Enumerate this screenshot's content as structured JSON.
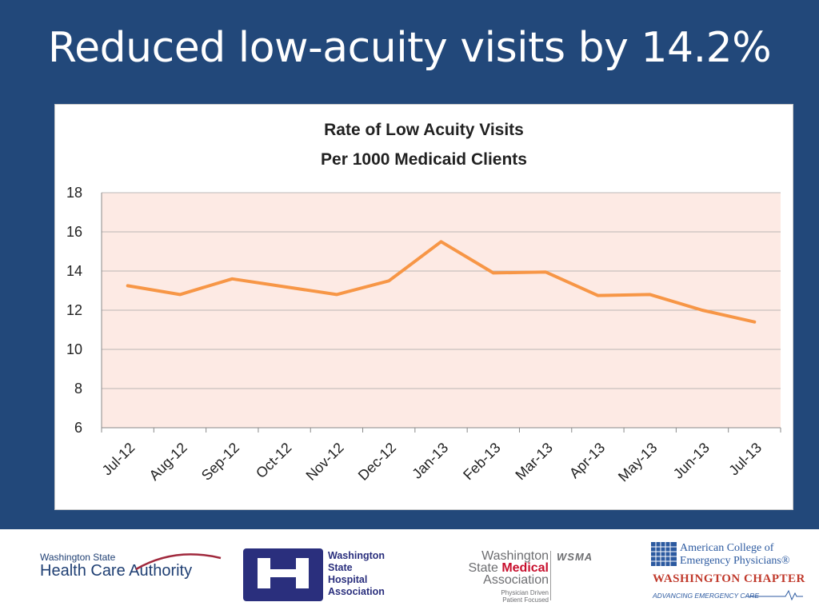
{
  "slide": {
    "title": "Reduced low-acuity visits by 14.2%"
  },
  "chart_data": {
    "type": "line",
    "title_lines": [
      "Rate of Low Acuity Visits",
      "Per 1000 Medicaid Clients"
    ],
    "categories": [
      "Jul-12",
      "Aug-12",
      "Sep-12",
      "Oct-12",
      "Nov-12",
      "Dec-12",
      "Jan-13",
      "Feb-13",
      "Mar-13",
      "Apr-13",
      "May-13",
      "Jun-13",
      "Jul-13"
    ],
    "values": [
      13.25,
      12.8,
      13.6,
      13.2,
      12.8,
      13.5,
      15.5,
      13.9,
      13.95,
      12.75,
      12.8,
      12.0,
      11.4
    ],
    "ylim": [
      6,
      18
    ],
    "yticks": [
      6,
      8,
      10,
      12,
      14,
      16,
      18
    ],
    "grid": true,
    "xlabel": "",
    "ylabel": "",
    "colors": {
      "line": "#f79646",
      "plot_background": "#fdeae4",
      "gridline": "#a6a6a6"
    }
  },
  "footer": {
    "hca": {
      "line1": "Washington State",
      "line2": "Health Care Authority"
    },
    "wsha": {
      "lines": [
        "Washington",
        "State",
        "Hospital",
        "Association"
      ]
    },
    "wsma": {
      "line1": "Washington",
      "line2_plain": "State ",
      "line2_bold": "Medical",
      "line3": "Association",
      "tagline1": "Physician Driven",
      "tagline2": "Patient Focused",
      "abbr": "WSMA"
    },
    "acep": {
      "line1": "American College of",
      "line2": "Emergency Physicians®",
      "chapter": "WASHINGTON CHAPTER",
      "tagline": "ADVANCING EMERGENCY CARE"
    }
  }
}
